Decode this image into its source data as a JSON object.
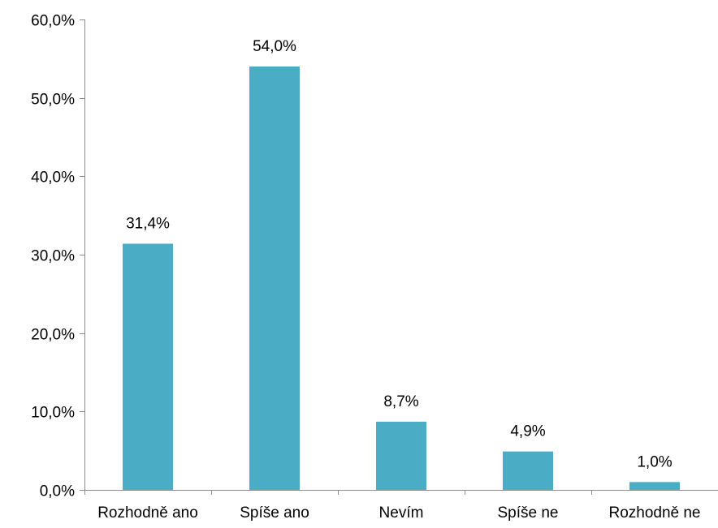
{
  "chart_data": {
    "type": "bar",
    "title": "",
    "xlabel": "",
    "ylabel": "",
    "categories": [
      "Rozhodně ano",
      "Spíše ano",
      "Nevím",
      "Spíše ne",
      "Rozhodně ne"
    ],
    "values": [
      31.4,
      54.0,
      8.7,
      4.9,
      1.0
    ],
    "data_labels": [
      "31,4%",
      "54,0%",
      "8,7%",
      "4,9%",
      "1,0%"
    ],
    "ylim": [
      0,
      60
    ],
    "yticks": [
      0,
      10,
      20,
      30,
      40,
      50,
      60
    ],
    "ytick_labels": [
      "0,0%",
      "10,0%",
      "20,0%",
      "30,0%",
      "40,0%",
      "50,0%",
      "60,0%"
    ],
    "grid": false,
    "legend": "none",
    "bar_color": "#4bacc6"
  }
}
